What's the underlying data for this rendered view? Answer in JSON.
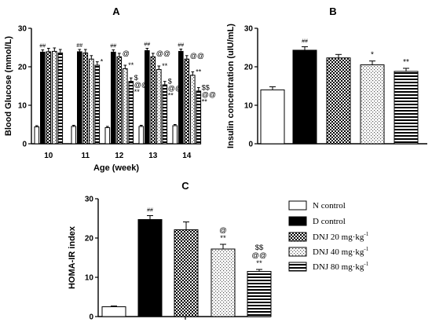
{
  "chart_data": [
    {
      "panel": "A",
      "type": "bar",
      "title": "A",
      "xlabel": "Age (week)",
      "ylabel": "Blood Glucose (mmol/L)",
      "ylim": [
        0,
        30
      ],
      "yticks": [
        0,
        10,
        20,
        30
      ],
      "categories": [
        "10",
        "11",
        "12",
        "13",
        "14"
      ],
      "series": [
        {
          "name": "N control",
          "pattern": "white",
          "values": [
            4.4,
            4.5,
            4.2,
            4.5,
            4.7
          ],
          "errors": [
            0.3,
            0.3,
            0.3,
            0.3,
            0.3
          ]
        },
        {
          "name": "D control",
          "pattern": "black",
          "values": [
            23.8,
            23.9,
            23.8,
            24.2,
            24.0
          ],
          "errors": [
            0.6,
            0.6,
            0.6,
            0.6,
            0.6
          ]
        },
        {
          "name": "DNJ 20 mg·kg-1",
          "pattern": "check",
          "values": [
            23.9,
            23.6,
            22.6,
            22.6,
            22.0
          ],
          "errors": [
            0.9,
            0.9,
            0.9,
            0.9,
            0.9
          ]
        },
        {
          "name": "DNJ 40 mg·kg-1",
          "pattern": "dots",
          "values": [
            24.0,
            22.0,
            19.5,
            19.3,
            17.8
          ],
          "errors": [
            0.9,
            0.9,
            0.9,
            0.9,
            0.9
          ]
        },
        {
          "name": "DNJ 80 mg·kg-1",
          "pattern": "hstripe",
          "values": [
            23.6,
            20.4,
            16.2,
            15.3,
            13.7
          ],
          "errors": [
            0.9,
            0.9,
            0.9,
            0.9,
            0.9
          ]
        }
      ],
      "annotations": [
        {
          "category": "10",
          "series": "D control",
          "text": "##"
        },
        {
          "category": "11",
          "series": "D control",
          "text": "##"
        },
        {
          "category": "11",
          "series": "DNJ 80 mg·kg-1",
          "text": "*"
        },
        {
          "category": "12",
          "series": "D control",
          "text": "##"
        },
        {
          "category": "12",
          "series": "DNJ 20 mg·kg-1",
          "text": "@"
        },
        {
          "category": "12",
          "series": "DNJ 40 mg·kg-1",
          "text": "**"
        },
        {
          "category": "12",
          "series": "DNJ 80 mg·kg-1",
          "text": "$"
        },
        {
          "category": "12",
          "series": "DNJ 80 mg·kg-1",
          "text": "@@"
        },
        {
          "category": "12",
          "series": "DNJ 80 mg·kg-1",
          "text": "**"
        },
        {
          "category": "13",
          "series": "D control",
          "text": "##"
        },
        {
          "category": "13",
          "series": "DNJ 20 mg·kg-1",
          "text": "@@"
        },
        {
          "category": "13",
          "series": "DNJ 40 mg·kg-1",
          "text": "**"
        },
        {
          "category": "13",
          "series": "DNJ 80 mg·kg-1",
          "text": "$"
        },
        {
          "category": "13",
          "series": "DNJ 80 mg·kg-1",
          "text": "@@"
        },
        {
          "category": "13",
          "series": "DNJ 80 mg·kg-1",
          "text": "**"
        },
        {
          "category": "14",
          "series": "D control",
          "text": "##"
        },
        {
          "category": "14",
          "series": "DNJ 20 mg·kg-1",
          "text": "@@"
        },
        {
          "category": "14",
          "series": "DNJ 40 mg·kg-1",
          "text": "**"
        },
        {
          "category": "14",
          "series": "DNJ 80 mg·kg-1",
          "text": "$$"
        },
        {
          "category": "14",
          "series": "DNJ 80 mg·kg-1",
          "text": "@@"
        },
        {
          "category": "14",
          "series": "DNJ 80 mg·kg-1",
          "text": "**"
        }
      ]
    },
    {
      "panel": "B",
      "type": "bar",
      "title": "B",
      "xlabel": "",
      "ylabel": "Insulin concentration (uIU/mL)",
      "ylim": [
        0,
        30
      ],
      "yticks": [
        0,
        10,
        20,
        30
      ],
      "categories": [
        "N control",
        "D control",
        "DNJ 20 mg·kg-1",
        "DNJ 40 mg·kg-1",
        "DNJ 80 mg·kg-1"
      ],
      "values": [
        14.0,
        24.3,
        22.3,
        20.5,
        18.8
      ],
      "errors": [
        0.8,
        0.9,
        0.9,
        1.0,
        0.8
      ],
      "patterns": [
        "white",
        "black",
        "check",
        "dots",
        "hstripe"
      ],
      "labels": [
        "",
        "##",
        "",
        "*",
        "**"
      ]
    },
    {
      "panel": "C",
      "type": "bar",
      "title": "C",
      "xlabel": "",
      "ylabel": "HOMA-IR index",
      "ylim": [
        0,
        30
      ],
      "yticks": [
        0,
        10,
        20,
        30
      ],
      "categories": [
        "N control",
        "D control",
        "DNJ 20 mg·kg-1",
        "DNJ 40 mg·kg-1",
        "DNJ 80 mg·kg-1"
      ],
      "values": [
        2.5,
        24.7,
        22.1,
        17.2,
        11.5
      ],
      "errors": [
        0.2,
        1.0,
        2.0,
        1.2,
        0.5
      ],
      "patterns": [
        "white",
        "black",
        "check",
        "dots",
        "hstripe"
      ],
      "labels": [
        [],
        [
          "##"
        ],
        [],
        [
          "@",
          "**"
        ],
        [
          "$$",
          "@@",
          "**"
        ]
      ]
    }
  ],
  "legend": {
    "position": "right of panel C",
    "entries": [
      {
        "label": "N control",
        "pattern": "white"
      },
      {
        "label": "D control",
        "pattern": "black"
      },
      {
        "label": "DNJ 20 mg·kg",
        "sup": "-1",
        "pattern": "check"
      },
      {
        "label": "DNJ 40 mg·kg",
        "sup": "-1",
        "pattern": "dots"
      },
      {
        "label": "DNJ 80 mg·kg",
        "sup": "-1",
        "pattern": "hstripe"
      }
    ]
  },
  "colors": {
    "ink": "#000000",
    "paper": "#ffffff"
  }
}
